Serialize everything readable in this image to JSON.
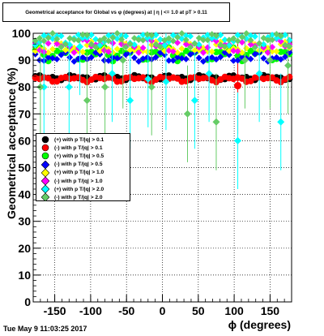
{
  "title": "Geometrical acceptance for Global vs φ (degrees) at | η | <= 1.0 at pT > 0.11",
  "timestamp": "Tue May  9 11:03:25 2017",
  "chart_data": {
    "type": "scatter",
    "xlabel": "ϕ (degrees)",
    "ylabel": "Geometrical acceptance (%)",
    "xlim": [
      -180,
      180
    ],
    "ylim": [
      0,
      100
    ],
    "x_ticks": [
      -150,
      -100,
      -50,
      0,
      50,
      100,
      150
    ],
    "y_ticks": [
      0,
      10,
      20,
      30,
      40,
      50,
      60,
      70,
      80,
      90,
      100
    ],
    "grid": true,
    "legend_placement": "middle-left",
    "series": [
      {
        "name": "(+) with p T/|q| > 0.1",
        "color": "#000000",
        "marker": "circle",
        "level": 83.5,
        "spread": 1.0,
        "dips": []
      },
      {
        "name": "(-) with p T/|q| > 0.1",
        "color": "#ff0000",
        "marker": "circle",
        "level": 83.0,
        "spread": 1.2,
        "dips": [
          [
            105,
            80.5
          ]
        ]
      },
      {
        "name": "(+) with p T/|q| > 0.5",
        "color": "#00ff00",
        "marker": "circle",
        "level": 92.5,
        "spread": 3.0,
        "dips": []
      },
      {
        "name": "(-) with p T/|q| > 0.5",
        "color": "#0000ff",
        "marker": "diamond",
        "level": 91.0,
        "spread": 2.0,
        "dips": []
      },
      {
        "name": "(+) with p T/|q| > 1.0",
        "color": "#ffff00",
        "marker": "diamond",
        "level": 94.5,
        "spread": 2.5,
        "dips": []
      },
      {
        "name": "(-) with p T/|q| > 1.0",
        "color": "#ff00ff",
        "marker": "diamond",
        "level": 95.5,
        "spread": 3.0,
        "dips": []
      },
      {
        "name": "(+) with p T/|q| > 2.0",
        "color": "#00ffff",
        "marker": "diamond",
        "level": 98.0,
        "spread": 2.5,
        "dips": [
          [
            -165,
            80
          ],
          [
            -115,
            95
          ],
          [
            -70,
            85
          ],
          [
            -45,
            75
          ],
          [
            5,
            82
          ],
          [
            -20,
            83
          ],
          [
            45,
            75
          ],
          [
            65,
            85
          ],
          [
            105,
            60
          ],
          [
            135,
            85
          ],
          [
            165,
            67
          ],
          [
            -130,
            80
          ]
        ]
      },
      {
        "name": "(-) with p T/|q| > 2.0",
        "color": "#66cc66",
        "marker": "diamond",
        "level": 97.5,
        "spread": 3.0,
        "dips": [
          [
            -170,
            80
          ],
          [
            -105,
            75
          ],
          [
            -80,
            80
          ],
          [
            -15,
            80
          ],
          [
            35,
            70
          ],
          [
            75,
            67
          ],
          [
            115,
            90
          ],
          [
            175,
            88
          ],
          [
            -55,
            90
          ],
          [
            150,
            90
          ]
        ]
      }
    ]
  }
}
